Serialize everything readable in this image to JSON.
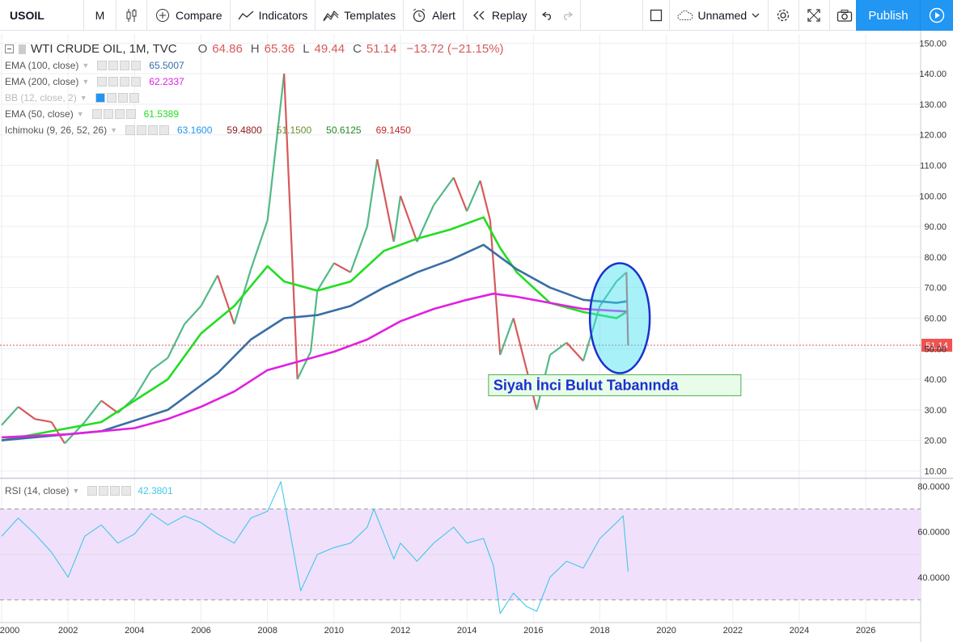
{
  "toolbar": {
    "symbol": "USOIL",
    "interval": "M",
    "compare": "Compare",
    "indicators": "Indicators",
    "templates": "Templates",
    "alert": "Alert",
    "replay": "Replay",
    "layout_name": "Unnamed",
    "publish": "Publish"
  },
  "header": {
    "title": "WTI CRUDE OIL, 1M, TVC",
    "open_label": "O",
    "open": "64.86",
    "high_label": "H",
    "high": "65.36",
    "low_label": "L",
    "low": "49.44",
    "close_label": "C",
    "close": "51.14",
    "change": "−13.72 (−21.15%)"
  },
  "indicators": [
    {
      "label": "EMA (100, close)",
      "values": [
        "65.5007"
      ],
      "colors": [
        "#3a6ea5"
      ]
    },
    {
      "label": "EMA (200, close)",
      "values": [
        "62.2337"
      ],
      "colors": [
        "#e020e0"
      ]
    },
    {
      "label": "BB (12, close, 2)",
      "values": [],
      "colors": []
    },
    {
      "label": "EMA (50, close)",
      "values": [
        "61.5389"
      ],
      "colors": [
        "#22dd22"
      ]
    },
    {
      "label": "Ichimoku (9, 26, 52, 26)",
      "values": [
        "63.1600",
        "59.4800",
        "51.1500",
        "50.6125",
        "69.1450"
      ],
      "colors": [
        "#2196f3",
        "#8b1a1a",
        "#6a8f2a",
        "#228b22",
        "#c62828"
      ]
    }
  ],
  "rsi_label": "RSI (14, close)",
  "rsi_value": "42.3801",
  "last_price_tag": "51.14",
  "annotation_text": "Siyah İnci Bulut Tabanında",
  "chart_data": {
    "type": "line",
    "title": "WTI CRUDE OIL, 1M, TVC",
    "price_axis": {
      "range": [
        8,
        153
      ],
      "ticks": [
        "150.00",
        "140.00",
        "130.00",
        "120.00",
        "110.00",
        "100.00",
        "90.00",
        "80.00",
        "70.00",
        "60.00",
        "50.00",
        "40.00",
        "30.00",
        "20.00",
        "10.00"
      ]
    },
    "rsi_axis": {
      "range": [
        20,
        83
      ],
      "ticks": [
        "80.0000",
        "60.0000",
        "40.0000"
      ],
      "bands": [
        30,
        70
      ]
    },
    "time_axis": {
      "range": [
        2000,
        2027.7
      ],
      "ticks": [
        "2000",
        "2002",
        "2004",
        "2006",
        "2008",
        "2010",
        "2012",
        "2014",
        "2016",
        "2018",
        "2020",
        "2022",
        "2024",
        "2026"
      ]
    },
    "series": [
      {
        "name": "WTI CRUDE OIL",
        "color": "#d65a5a",
        "points": [
          [
            2000,
            25
          ],
          [
            2000.5,
            31
          ],
          [
            2001,
            27
          ],
          [
            2001.5,
            26
          ],
          [
            2001.9,
            19
          ],
          [
            2002.5,
            26
          ],
          [
            2003,
            33
          ],
          [
            2003.5,
            29
          ],
          [
            2004,
            34
          ],
          [
            2004.5,
            43
          ],
          [
            2005,
            47
          ],
          [
            2005.5,
            58
          ],
          [
            2006,
            64
          ],
          [
            2006.5,
            74
          ],
          [
            2007,
            58
          ],
          [
            2007.5,
            76
          ],
          [
            2008,
            92
          ],
          [
            2008.5,
            140
          ],
          [
            2008.9,
            40
          ],
          [
            2009.3,
            49
          ],
          [
            2009.5,
            69
          ],
          [
            2010,
            78
          ],
          [
            2010.5,
            75
          ],
          [
            2011,
            90
          ],
          [
            2011.3,
            112
          ],
          [
            2011.8,
            85
          ],
          [
            2012,
            100
          ],
          [
            2012.5,
            85
          ],
          [
            2013,
            97
          ],
          [
            2013.6,
            106
          ],
          [
            2014,
            95
          ],
          [
            2014.4,
            105
          ],
          [
            2014.7,
            92
          ],
          [
            2015,
            48
          ],
          [
            2015.4,
            60
          ],
          [
            2015.8,
            43
          ],
          [
            2016.1,
            30
          ],
          [
            2016.5,
            48
          ],
          [
            2017,
            52
          ],
          [
            2017.5,
            46
          ],
          [
            2018,
            64
          ],
          [
            2018.5,
            72
          ],
          [
            2018.8,
            75
          ],
          [
            2018.85,
            51
          ]
        ]
      },
      {
        "name": "EMA (50, close)",
        "color": "#22dd22",
        "points": [
          [
            2000,
            20
          ],
          [
            2003,
            26
          ],
          [
            2005,
            40
          ],
          [
            2006,
            55
          ],
          [
            2007,
            64
          ],
          [
            2008,
            77
          ],
          [
            2008.5,
            72
          ],
          [
            2009.5,
            69
          ],
          [
            2010.5,
            72
          ],
          [
            2011.5,
            82
          ],
          [
            2012.5,
            86
          ],
          [
            2013.5,
            89
          ],
          [
            2014.5,
            93
          ],
          [
            2015,
            83
          ],
          [
            2015.5,
            75
          ],
          [
            2016.5,
            65
          ],
          [
            2017.5,
            62
          ],
          [
            2018.5,
            60
          ],
          [
            2018.8,
            62
          ]
        ]
      },
      {
        "name": "EMA (100, close)",
        "color": "#3a6ea5",
        "points": [
          [
            2000,
            20
          ],
          [
            2003,
            23
          ],
          [
            2005,
            30
          ],
          [
            2006.5,
            42
          ],
          [
            2007.5,
            53
          ],
          [
            2008.5,
            60
          ],
          [
            2009.5,
            61
          ],
          [
            2010.5,
            64
          ],
          [
            2011.5,
            70
          ],
          [
            2012.5,
            75
          ],
          [
            2013.5,
            79
          ],
          [
            2014.5,
            84
          ],
          [
            2015,
            80
          ],
          [
            2015.5,
            76
          ],
          [
            2016.5,
            70
          ],
          [
            2017.5,
            66
          ],
          [
            2018.5,
            65
          ],
          [
            2018.8,
            65.5
          ]
        ]
      },
      {
        "name": "EMA (200, close)",
        "color": "#e020e0",
        "points": [
          [
            2000,
            21
          ],
          [
            2002,
            22
          ],
          [
            2003,
            23
          ],
          [
            2004,
            24
          ],
          [
            2005,
            27
          ],
          [
            2006,
            31
          ],
          [
            2007,
            36
          ],
          [
            2008,
            43
          ],
          [
            2009,
            46
          ],
          [
            2010,
            49
          ],
          [
            2011,
            53
          ],
          [
            2012,
            59
          ],
          [
            2013,
            63
          ],
          [
            2014,
            66
          ],
          [
            2014.8,
            68
          ],
          [
            2015.5,
            67
          ],
          [
            2016.5,
            65
          ],
          [
            2017.5,
            63
          ],
          [
            2018.8,
            62.2
          ]
        ]
      },
      {
        "name": "RSI (14, close)",
        "color": "#40c8e8",
        "points": [
          [
            2000,
            58
          ],
          [
            2000.5,
            66
          ],
          [
            2001,
            59
          ],
          [
            2001.5,
            51
          ],
          [
            2002,
            40
          ],
          [
            2002.5,
            58
          ],
          [
            2003,
            63
          ],
          [
            2003.5,
            55
          ],
          [
            2004,
            59
          ],
          [
            2004.5,
            68
          ],
          [
            2005,
            63
          ],
          [
            2005.5,
            67
          ],
          [
            2006,
            64
          ],
          [
            2006.5,
            59
          ],
          [
            2007,
            55
          ],
          [
            2007.5,
            66
          ],
          [
            2008,
            69
          ],
          [
            2008.4,
            82
          ],
          [
            2009,
            34
          ],
          [
            2009.5,
            50
          ],
          [
            2010,
            53
          ],
          [
            2010.5,
            55
          ],
          [
            2011,
            62
          ],
          [
            2011.2,
            70
          ],
          [
            2011.8,
            48
          ],
          [
            2012,
            55
          ],
          [
            2012.5,
            47
          ],
          [
            2013,
            55
          ],
          [
            2013.6,
            62
          ],
          [
            2014,
            55
          ],
          [
            2014.5,
            57
          ],
          [
            2014.8,
            45
          ],
          [
            2015,
            24
          ],
          [
            2015.4,
            33
          ],
          [
            2015.8,
            27
          ],
          [
            2016.1,
            25
          ],
          [
            2016.5,
            40
          ],
          [
            2017,
            47
          ],
          [
            2017.5,
            44
          ],
          [
            2018,
            57
          ],
          [
            2018.5,
            64
          ],
          [
            2018.7,
            67
          ],
          [
            2018.85,
            42.38
          ]
        ]
      }
    ]
  }
}
